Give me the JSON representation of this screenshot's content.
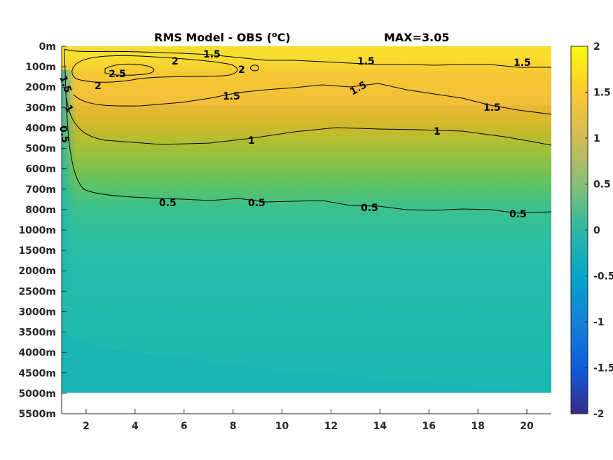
{
  "chart_data": {
    "type": "heatmap",
    "title": "RMS Model - OBS",
    "title_unit_prefix": "(",
    "title_unit_super": "o",
    "title_unit_suffix": "C)",
    "max_label": "MAX=3.05",
    "x_ticks": [
      2,
      4,
      6,
      8,
      10,
      12,
      14,
      16,
      18,
      20
    ],
    "xlim": [
      1,
      21
    ],
    "y_levels": [
      "0m",
      "100m",
      "200m",
      "300m",
      "400m",
      "500m",
      "600m",
      "700m",
      "800m",
      "1000m",
      "1500m",
      "2000m",
      "2500m",
      "3000m",
      "3500m",
      "4000m",
      "4500m",
      "5000m",
      "5500m"
    ],
    "data_bottom_level": "5000m",
    "colorbar": {
      "ticks": [
        "2",
        "1.5",
        "1",
        "0.5",
        "0",
        "-0.5",
        "-1",
        "-1.5",
        "-2"
      ],
      "range": [
        -2,
        2
      ]
    },
    "colormap": "parula",
    "contour_levels": [
      0.5,
      1,
      1.5,
      2,
      2.5
    ],
    "contour_labels": [
      {
        "text": "1.5",
        "x": 7.2,
        "level": "0m"
      },
      {
        "text": "2",
        "x": 5.7,
        "level": "100m"
      },
      {
        "text": "2.5",
        "x": 3.4,
        "level": "100m"
      },
      {
        "text": "2",
        "x": 2.5,
        "level": "200m"
      },
      {
        "text": "2",
        "x": 8.3,
        "level": "100m"
      },
      {
        "text": "1.5",
        "x": 1.2,
        "level": "100m"
      },
      {
        "text": "1.5",
        "x": 7.8,
        "level": "200m"
      },
      {
        "text": "1.5",
        "x": 13.7,
        "level": "100m"
      },
      {
        "text": "1.5",
        "x": 13.3,
        "level": "200m"
      },
      {
        "text": "1.5",
        "x": 20.0,
        "level": "100m"
      },
      {
        "text": "1.5",
        "x": 19.1,
        "level": "300m"
      },
      {
        "text": "1",
        "x": 1.3,
        "level": "300m"
      },
      {
        "text": "0.5",
        "x": 1.0,
        "level": "400m"
      },
      {
        "text": "1",
        "x": 9.6,
        "level": "500m"
      },
      {
        "text": "1",
        "x": 17.2,
        "level": "400m"
      },
      {
        "text": "0.5",
        "x": 6.4,
        "level": "800m"
      },
      {
        "text": "0.5",
        "x": 9.9,
        "level": "800m"
      },
      {
        "text": "0.5",
        "x": 14.9,
        "level": "800m"
      },
      {
        "text": "0.5",
        "x": 20.3,
        "level": "800m"
      }
    ]
  }
}
